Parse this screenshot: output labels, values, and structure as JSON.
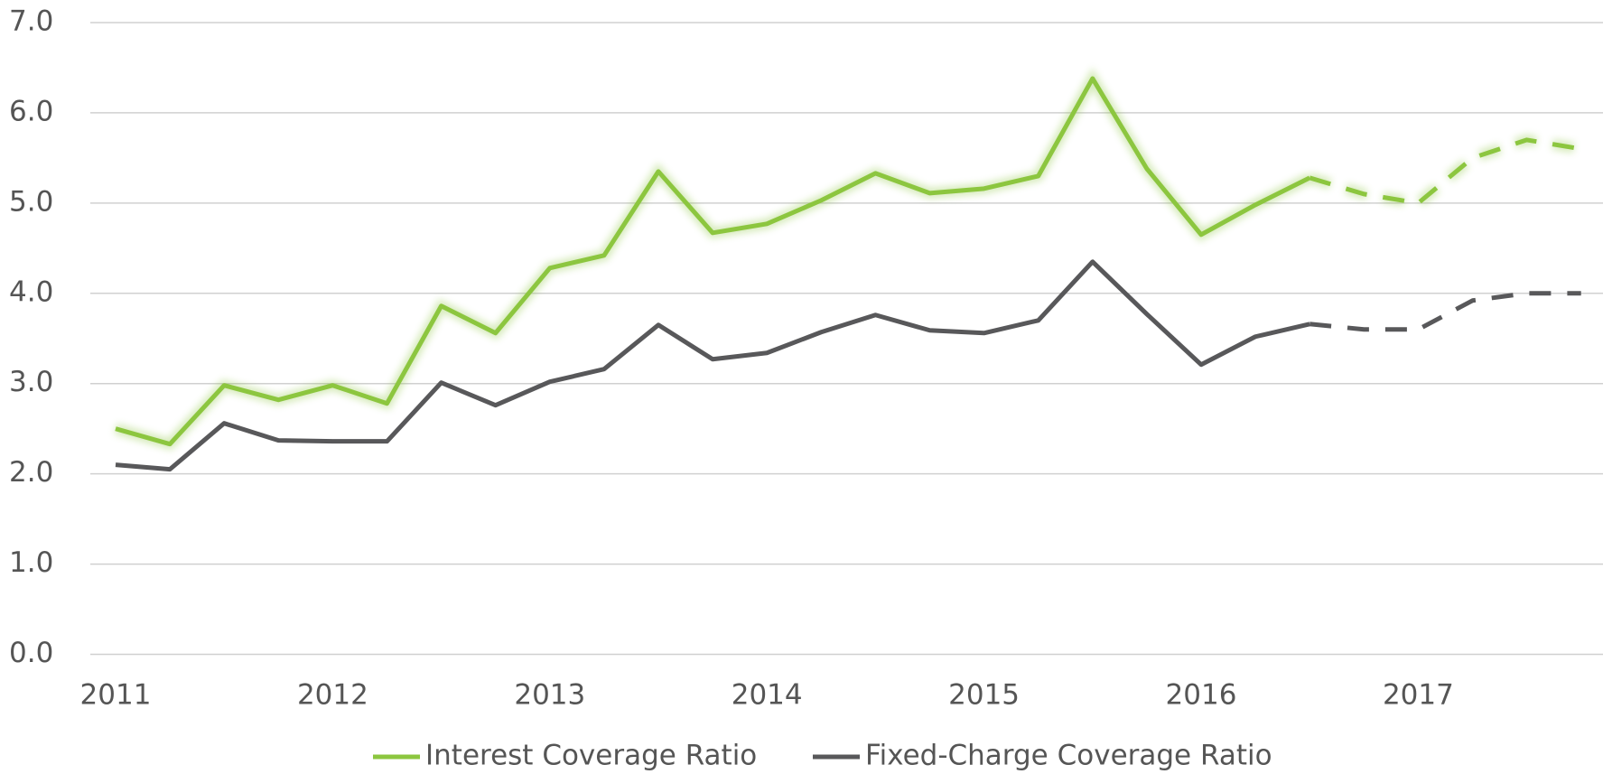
{
  "chart_data": {
    "type": "line",
    "categories": [
      "2011",
      null,
      null,
      null,
      "2012",
      null,
      null,
      null,
      "2013",
      null,
      null,
      null,
      "2014",
      null,
      null,
      null,
      "2015",
      null,
      null,
      null,
      "2016",
      null,
      null,
      null,
      "2017",
      null,
      null,
      null
    ],
    "series": [
      {
        "name": "Interest Coverage Ratio",
        "color": "#8cc63f",
        "dash_from": 22,
        "values": [
          2.5,
          2.33,
          2.98,
          2.82,
          2.98,
          2.78,
          3.86,
          3.56,
          4.28,
          4.42,
          5.35,
          4.67,
          4.77,
          5.03,
          5.33,
          5.11,
          5.16,
          5.3,
          6.38,
          5.38,
          4.65,
          4.98,
          5.28,
          5.1,
          5.0,
          5.5,
          5.7,
          5.6
        ]
      },
      {
        "name": "Fixed-Charge Coverage Ratio",
        "color": "#58585a",
        "dash_from": 22,
        "values": [
          2.1,
          2.05,
          2.56,
          2.37,
          2.36,
          2.36,
          3.01,
          2.76,
          3.02,
          3.16,
          3.65,
          3.27,
          3.34,
          3.57,
          3.76,
          3.59,
          3.56,
          3.7,
          4.35,
          3.77,
          3.21,
          3.52,
          3.66,
          3.6,
          3.6,
          3.92,
          4.0,
          4.0
        ]
      }
    ],
    "ylim": [
      0,
      7
    ],
    "yticks": [
      {
        "value": 0,
        "label": "0.0"
      },
      {
        "value": 1,
        "label": "1.0"
      },
      {
        "value": 2,
        "label": "2.0"
      },
      {
        "value": 3,
        "label": "3.0"
      },
      {
        "value": 4,
        "label": "4.0"
      },
      {
        "value": 5,
        "label": "5.0"
      },
      {
        "value": 6,
        "label": "6.0"
      },
      {
        "value": 7,
        "label": "7.0"
      }
    ],
    "grid": true,
    "legend": "bottom"
  }
}
